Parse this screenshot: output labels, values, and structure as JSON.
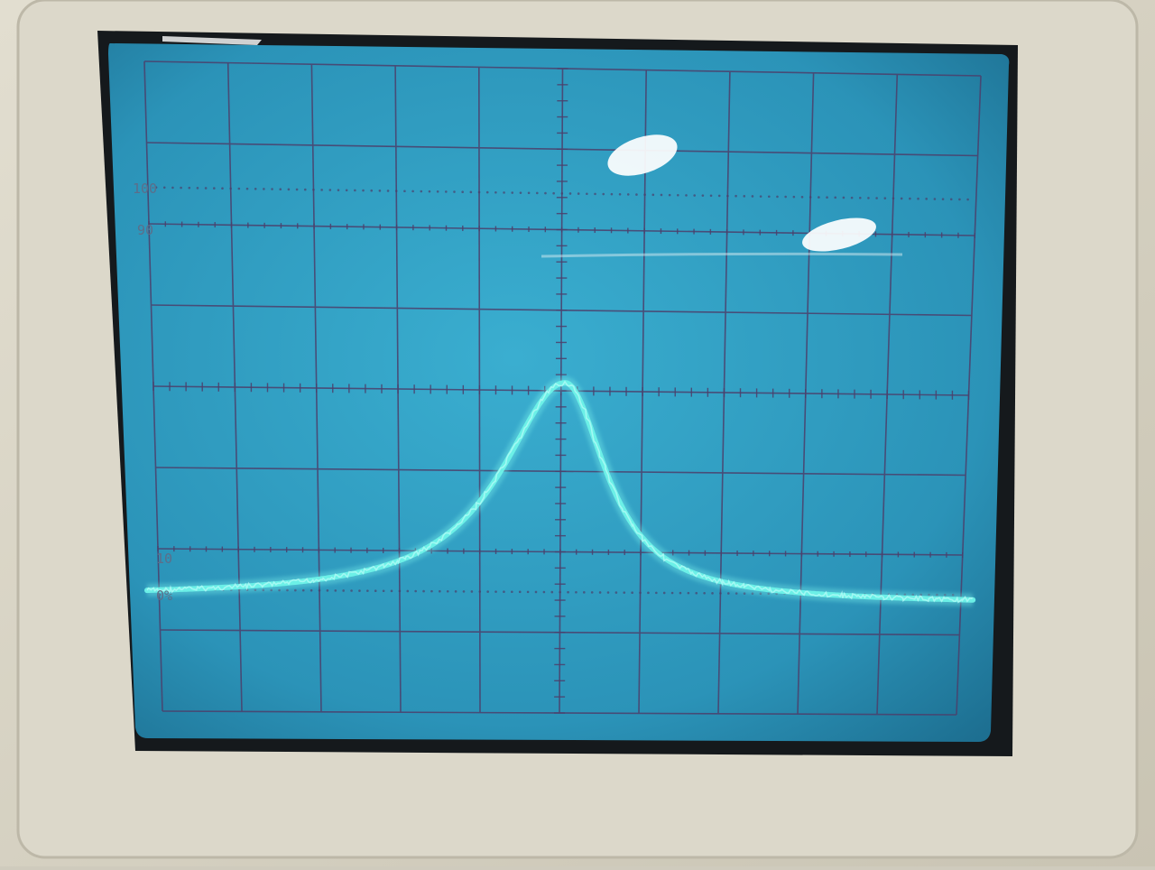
{
  "graticule_labels": {
    "pct100": "100",
    "pct90": "90",
    "pct10": "10",
    "pct0": "0%"
  },
  "colors": {
    "bezel": "#d8d4c6",
    "screen": "#2f9fc2",
    "grid": "#4c3f6b",
    "trace": "#6ef2e8"
  },
  "trace_shape": {
    "type": "resonance-peak",
    "peak_division_x": 5.05,
    "peak_division_y": 3.9,
    "baseline_division_y": 6.6,
    "divisions": [
      10,
      8
    ]
  }
}
